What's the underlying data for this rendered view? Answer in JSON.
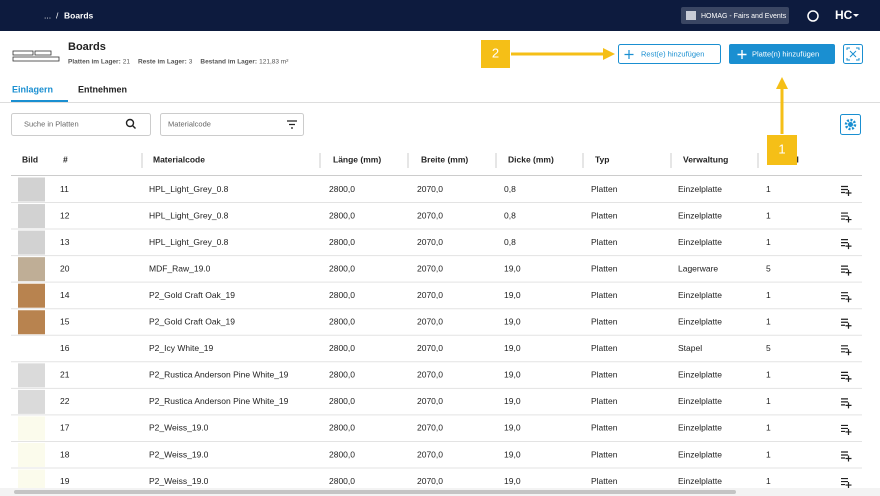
{
  "navbar": {
    "breadcrumb": {
      "items": [
        "...",
        "Boards"
      ],
      "separator": "/"
    },
    "workspace": "HOMAG - Fairs and Events",
    "logo": "HC"
  },
  "header": {
    "title": "Boards",
    "stats": [
      {
        "label": "Platten im Lager:",
        "value": "21"
      },
      {
        "label": "Reste im Lager:",
        "value": "3"
      },
      {
        "label": "Bestand im Lager:",
        "value": "121,83 m²"
      }
    ]
  },
  "buttons": {
    "add_rest": "Rest(e) hinzufügen",
    "add_board": "Platte(n) hinzufügen"
  },
  "annotations": [
    "1",
    "2"
  ],
  "tabs": [
    "Einlagern",
    "Entnehmen"
  ],
  "filters": {
    "search": "Suche in Platten",
    "material": "Materialcode"
  },
  "table": {
    "columns": [
      "Bild",
      "#",
      "Materialcode",
      "Länge (mm)",
      "Breite (mm)",
      "Dicke (mm)",
      "Typ",
      "Verwaltung",
      "Anzahl"
    ],
    "rows": [
      [
        "11",
        "HPL_Light_Grey_0.8",
        "2800,0",
        "2070,0",
        "0,8",
        "Platten",
        "Einzelplatte",
        "1"
      ],
      [
        "12",
        "HPL_Light_Grey_0.8",
        "2800,0",
        "2070,0",
        "0,8",
        "Platten",
        "Einzelplatte",
        "1"
      ],
      [
        "13",
        "HPL_Light_Grey_0.8",
        "2800,0",
        "2070,0",
        "0,8",
        "Platten",
        "Einzelplatte",
        "1"
      ],
      [
        "20",
        "MDF_Raw_19.0",
        "2800,0",
        "2070,0",
        "19,0",
        "Platten",
        "Lagerware",
        "5"
      ],
      [
        "14",
        "P2_Gold Craft Oak_19",
        "2800,0",
        "2070,0",
        "19,0",
        "Platten",
        "Einzelplatte",
        "1"
      ],
      [
        "15",
        "P2_Gold Craft Oak_19",
        "2800,0",
        "2070,0",
        "19,0",
        "Platten",
        "Einzelplatte",
        "1"
      ],
      [
        "16",
        "P2_Icy White_19",
        "2800,0",
        "2070,0",
        "19,0",
        "Platten",
        "Stapel",
        "5"
      ],
      [
        "21",
        "P2_Rustica Anderson Pine White_19",
        "2800,0",
        "2070,0",
        "19,0",
        "Platten",
        "Einzelplatte",
        "1"
      ],
      [
        "22",
        "P2_Rustica Anderson Pine White_19",
        "2800,0",
        "2070,0",
        "19,0",
        "Platten",
        "Einzelplatte",
        "1"
      ],
      [
        "17",
        "P2_Weiss_19.0",
        "2800,0",
        "2070,0",
        "19,0",
        "Platten",
        "Einzelplatte",
        "1"
      ],
      [
        "18",
        "P2_Weiss_19.0",
        "2800,0",
        "2070,0",
        "19,0",
        "Platten",
        "Einzelplatte",
        "1"
      ],
      [
        "19",
        "P2_Weiss_19.0",
        "2800,0",
        "2070,0",
        "19,0",
        "Platten",
        "Einzelplatte",
        "1"
      ]
    ]
  }
}
